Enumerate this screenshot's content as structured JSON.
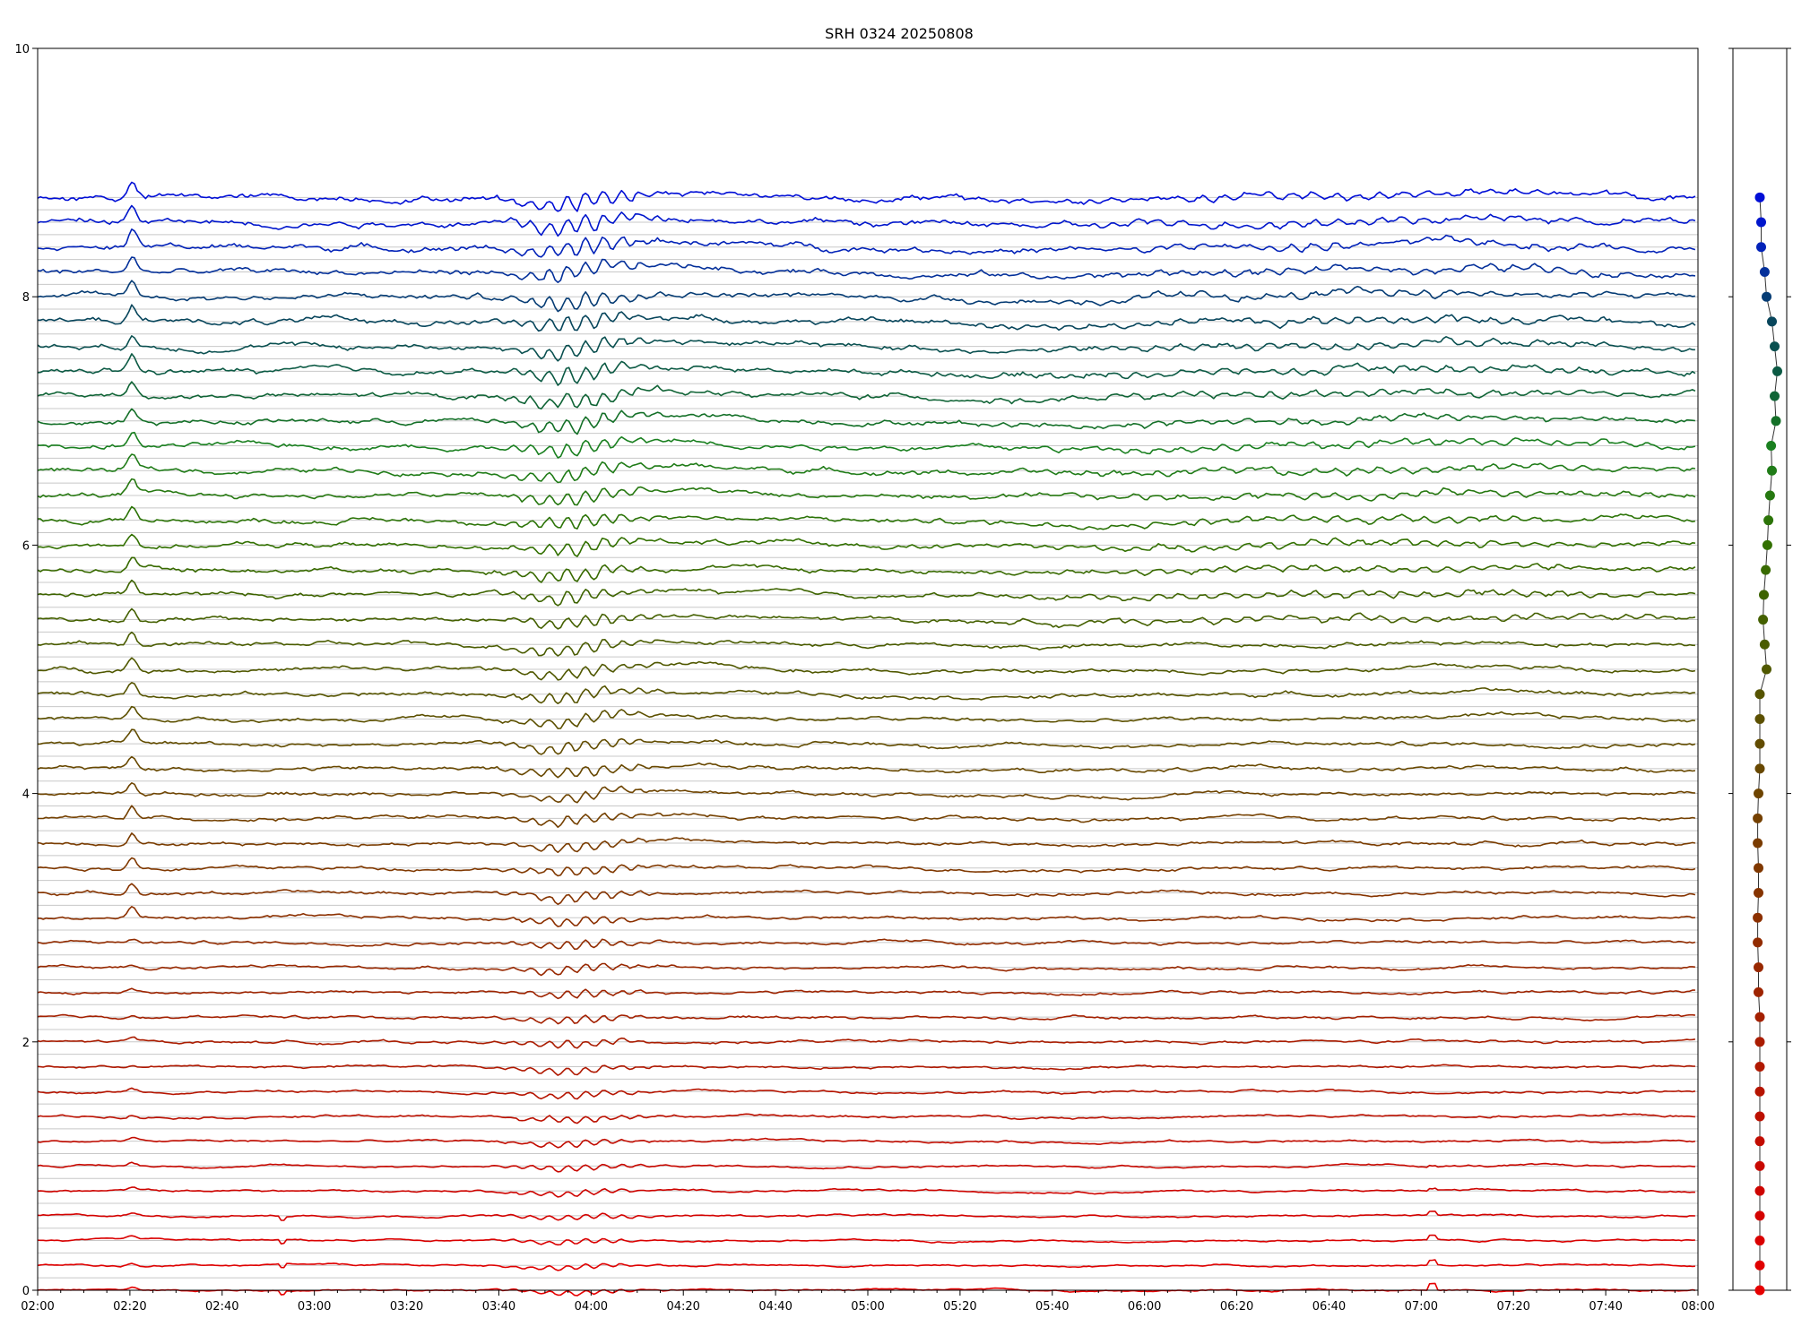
{
  "chart_data": {
    "type": "line",
    "title": "SRH 0324 20250808",
    "xlabel": "",
    "ylabel": "",
    "x_range": [
      "02:00",
      "08:00"
    ],
    "ylim": [
      0,
      10
    ],
    "x_tick_labels": [
      "02:00",
      "02:20",
      "02:40",
      "03:00",
      "03:20",
      "03:40",
      "04:00",
      "04:20",
      "04:40",
      "05:00",
      "05:20",
      "05:40",
      "06:00",
      "06:20",
      "06:40",
      "07:00",
      "07:20",
      "07:40",
      "08:00"
    ],
    "y_tick_labels": [
      "0",
      "2",
      "4",
      "6",
      "8",
      "10"
    ],
    "grid": "horizontal baselines",
    "n_series": 45,
    "series_baselines": [
      0.0,
      0.2,
      0.4,
      0.6,
      0.8,
      1.0,
      1.2,
      1.4,
      1.6,
      1.8,
      2.0,
      2.2,
      2.4,
      2.6,
      2.8,
      3.0,
      3.2,
      3.4,
      3.6,
      3.8,
      4.0,
      4.2,
      4.4,
      4.6,
      4.8,
      5.0,
      5.2,
      5.4,
      5.6,
      5.8,
      6.0,
      6.2,
      6.4,
      6.6,
      6.8,
      7.0,
      7.2,
      7.4,
      7.6,
      7.8,
      8.0,
      8.2,
      8.4,
      8.6,
      8.8
    ],
    "series_colors": [
      "#e60000",
      "#e00000",
      "#da0000",
      "#d40200",
      "#ce0400",
      "#c80800",
      "#c20c00",
      "#bc1000",
      "#b61400",
      "#b01800",
      "#aa1c00",
      "#a42000",
      "#9e2400",
      "#982800",
      "#922c00",
      "#8c3000",
      "#863400",
      "#803800",
      "#7a3c00",
      "#744000",
      "#6e4400",
      "#684800",
      "#624c00",
      "#5c5000",
      "#565400",
      "#505800",
      "#4a5c00",
      "#446000",
      "#3e6400",
      "#386a00",
      "#327000",
      "#2c7408",
      "#267810",
      "#207c18",
      "#1a8020",
      "#147028",
      "#106436",
      "#0c5a44",
      "#0a5050",
      "#08465c",
      "#063c74",
      "#04309a",
      "#0222b8",
      "#0016cc",
      "#000ed6"
    ],
    "side_panel_points": [
      0.0,
      0.2,
      0.4,
      0.6,
      0.8,
      1.0,
      1.2,
      1.4,
      1.6,
      1.8,
      2.0,
      2.2,
      2.4,
      2.6,
      2.8,
      3.0,
      3.2,
      3.4,
      3.6,
      3.8,
      4.0,
      4.2,
      4.4,
      4.6,
      4.8,
      5.0,
      5.2,
      5.4,
      5.6,
      5.8,
      6.0,
      6.2,
      6.4,
      6.6,
      6.8,
      7.0,
      7.2,
      7.4,
      7.6,
      7.8,
      8.0,
      8.2,
      8.4,
      8.6,
      8.8
    ],
    "side_panel_offsets": [
      0.0,
      0.0,
      0.0,
      0.0,
      0.0,
      0.0,
      0.0,
      0.0,
      0.0,
      0.0,
      0.0,
      0.0,
      -0.05,
      -0.05,
      -0.08,
      -0.08,
      -0.05,
      -0.05,
      -0.08,
      -0.08,
      -0.05,
      0.0,
      0.0,
      0.0,
      0.0,
      0.25,
      0.18,
      0.12,
      0.15,
      0.22,
      0.28,
      0.32,
      0.38,
      0.45,
      0.42,
      0.6,
      0.55,
      0.65,
      0.55,
      0.45,
      0.25,
      0.18,
      0.05,
      0.05,
      0.0
    ]
  }
}
